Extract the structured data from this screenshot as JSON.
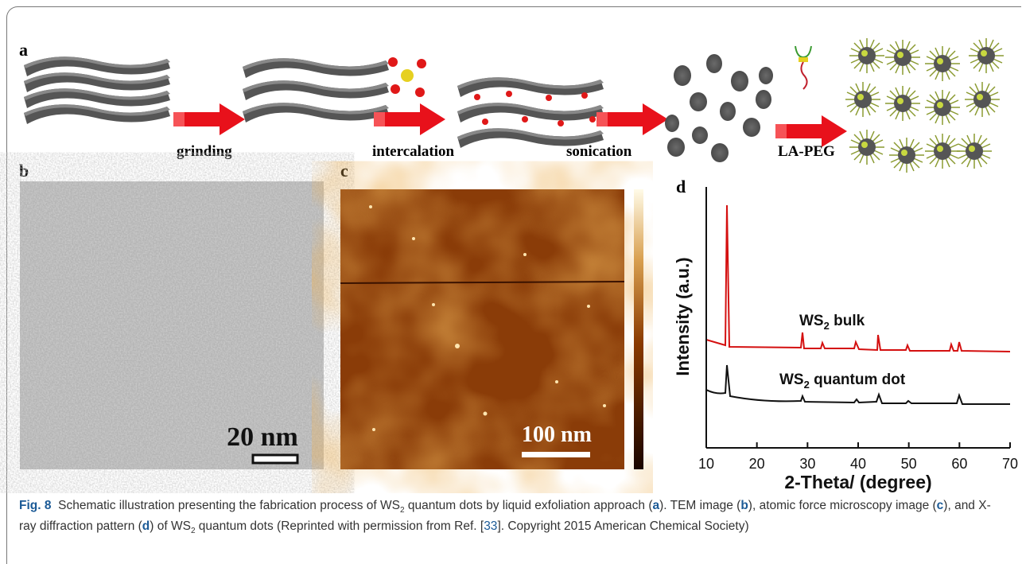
{
  "figure": {
    "panel_a": {
      "label": "a",
      "steps": [
        "grinding",
        "intercalation",
        "sonication",
        "LA-PEG"
      ]
    },
    "panel_b": {
      "label": "b",
      "scale": "20 nm"
    },
    "panel_c": {
      "label": "c",
      "scale": "100 nm"
    },
    "panel_d": {
      "label": "d",
      "ylabel": "Intensity (a.u.)",
      "xlabel": "2-Theta/ (degree)",
      "xlim": [
        10,
        70
      ],
      "xticks": [
        10,
        20,
        30,
        40,
        50,
        60,
        70
      ],
      "bulk_label": [
        "WS",
        "2",
        " bulk"
      ],
      "qd_label": [
        "WS",
        "2",
        " quantum dot"
      ]
    }
  },
  "caption": {
    "label": "Fig. 8",
    "parts": [
      "Schematic illustration presenting the fabrication process of WS",
      "2",
      " quantum dots by liquid exfoliation approach (",
      "a",
      "). TEM image (",
      "b",
      "), atomic force microscopy image (",
      "c",
      "), and X-ray diffraction pattern (",
      "d",
      ") of WS",
      "2",
      " quantum dots  (Reprinted with permission from Ref. [",
      "33",
      "]. Copyright 2015 American Chemical Society)"
    ]
  }
}
